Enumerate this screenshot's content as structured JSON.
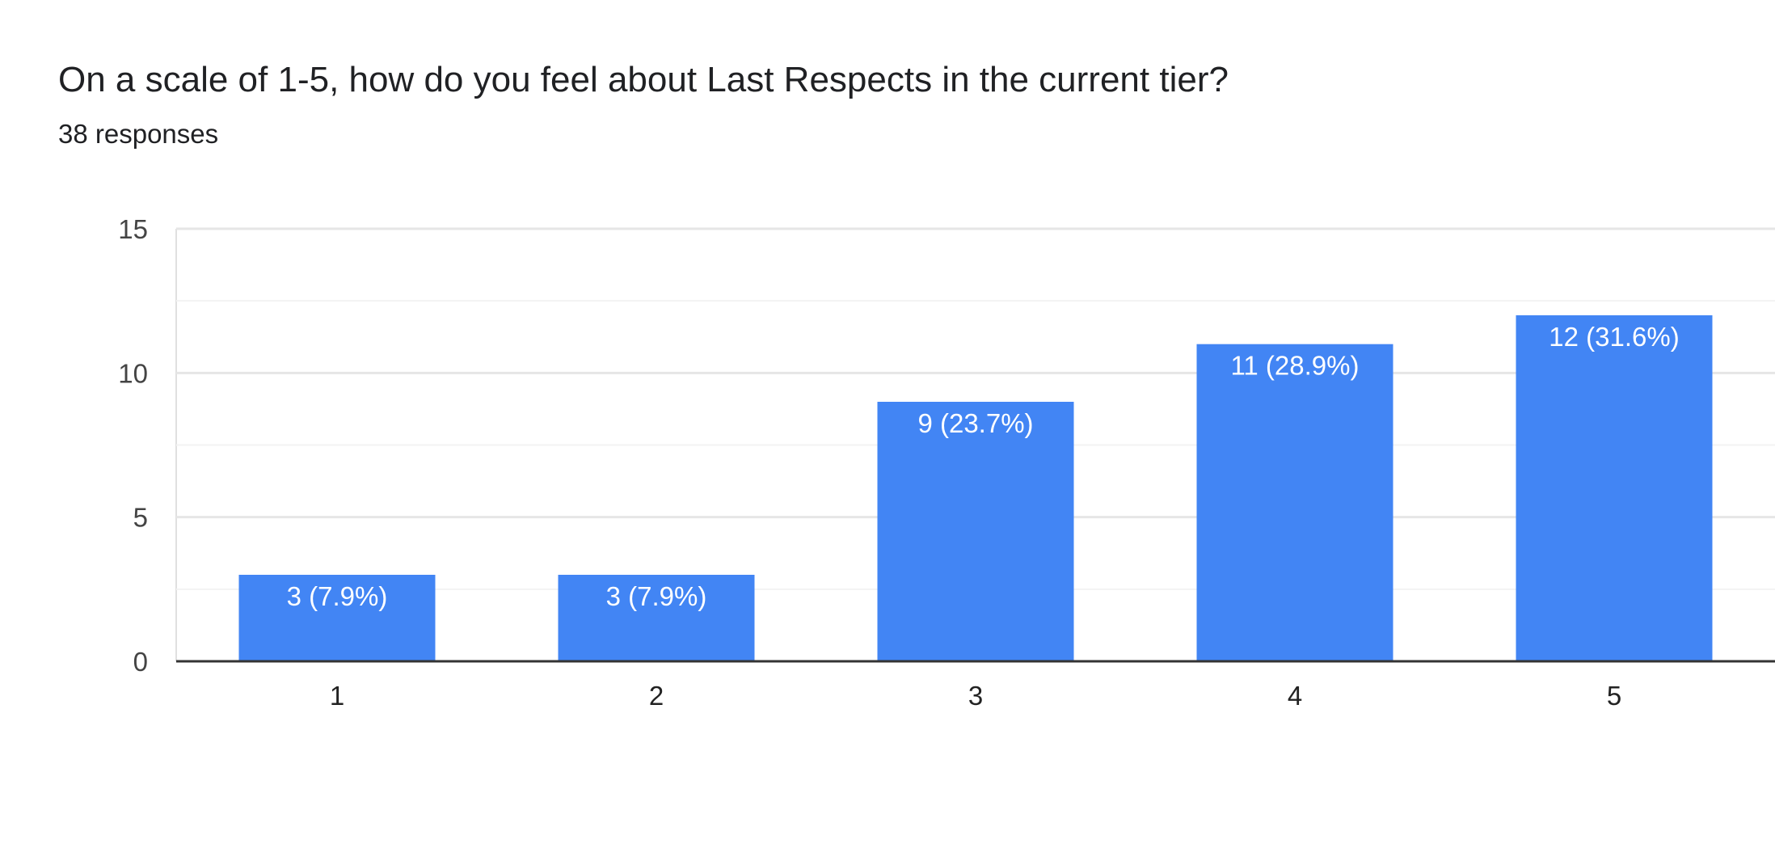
{
  "question": {
    "title": "On a scale of 1-5, how do you feel about Last Respects in the current tier?",
    "responses": "38 responses"
  },
  "chart_data": {
    "type": "bar",
    "title": "On a scale of 1-5, how do you feel about Last Respects in the current tier?",
    "subtitle": "38 responses",
    "categories": [
      "1",
      "2",
      "3",
      "4",
      "5"
    ],
    "values": [
      3,
      3,
      9,
      11,
      12
    ],
    "data_labels": [
      "3 (7.9%)",
      "3 (7.9%)",
      "9 (23.7%)",
      "11 (28.9%)",
      "12 (31.6%)"
    ],
    "ylim": [
      0,
      15
    ],
    "yticks": [
      0,
      5,
      10,
      15
    ],
    "minor_grid": [
      2.5,
      7.5,
      12.5
    ],
    "xlabel": "",
    "ylabel": "",
    "grid": true,
    "legend": "none",
    "colors": {
      "bar": "#4285f4",
      "grid_major": "#e6e6e6",
      "grid_minor": "#f3f3f3",
      "baseline": "#333333"
    }
  }
}
